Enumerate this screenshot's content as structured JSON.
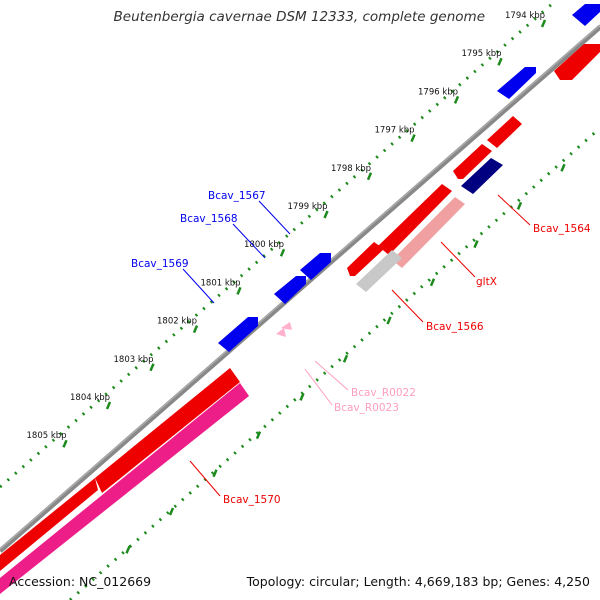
{
  "title": "Beutenbergia cavernae DSM 12333, complete genome",
  "footer": {
    "accession": "Accession: NC_012669",
    "summary": "Topology: circular; Length: 4,669,183 bp; Genes: 4,250"
  },
  "colors": {
    "backbone": "#777777",
    "forward_gene": "#0000ee",
    "reverse_gene": "#ee0000",
    "highlight_gene": "#000080",
    "rna": "#ff9ec0",
    "pseudo": "#f0a0a0",
    "cds_magenta": "#ee1e88",
    "tick": "#1c8a1c"
  },
  "scale": {
    "unit": "kbp",
    "ticks": [
      {
        "label": "1794 kbp"
      },
      {
        "label": "1795 kbp"
      },
      {
        "label": "1796 kbp"
      },
      {
        "label": "1797 kbp"
      },
      {
        "label": "1798 kbp"
      },
      {
        "label": "1799 kbp"
      },
      {
        "label": "1800 kbp"
      },
      {
        "label": "1801 kbp"
      },
      {
        "label": "1802 kbp"
      },
      {
        "label": "1803 kbp"
      },
      {
        "label": "1804 kbp"
      },
      {
        "label": "1805 kbp"
      }
    ]
  },
  "gene_labels": [
    {
      "name": "Bcav_1567",
      "color": "#0000ee"
    },
    {
      "name": "Bcav_1568",
      "color": "#0000ee"
    },
    {
      "name": "Bcav_1569",
      "color": "#0000ee"
    },
    {
      "name": "Bcav_1564",
      "color": "#ee0000"
    },
    {
      "name": "gltX",
      "color": "#ee0000"
    },
    {
      "name": "Bcav_1566",
      "color": "#ee0000"
    },
    {
      "name": "Bcav_R0022",
      "color": "#ff9ec0"
    },
    {
      "name": "Bcav_R0023",
      "color": "#ff9ec0"
    },
    {
      "name": "Bcav_1570",
      "color": "#ee0000"
    }
  ]
}
